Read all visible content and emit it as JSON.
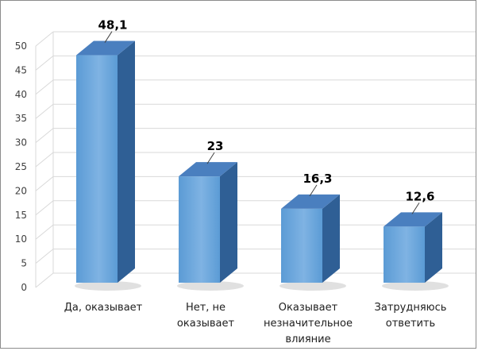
{
  "chart_data": {
    "type": "bar",
    "style": "3d-column",
    "categories": [
      [
        "Да, оказывает"
      ],
      [
        "Нет, не",
        "оказывает"
      ],
      [
        "Оказывает",
        "незначительное",
        "влияние"
      ],
      [
        "Затрудняюсь",
        "ответить"
      ]
    ],
    "values": [
      48.1,
      23,
      16.3,
      12.6
    ],
    "data_labels": [
      "48,1",
      "23",
      "16,3",
      "12,6"
    ],
    "title": "",
    "xlabel": "",
    "ylabel": "",
    "ylim": [
      0,
      50
    ],
    "yticks": [
      0,
      5,
      10,
      15,
      20,
      25,
      30,
      35,
      40,
      45,
      50
    ],
    "grid": true,
    "legend": "none",
    "colors": {
      "bar_front": "#5b9bd5",
      "bar_front_light": "#7fb3e3",
      "bar_side": "#2f5f95",
      "bar_top": "#4a7fbf",
      "grid": "#d9d9d9",
      "axis_text": "#404040"
    }
  }
}
